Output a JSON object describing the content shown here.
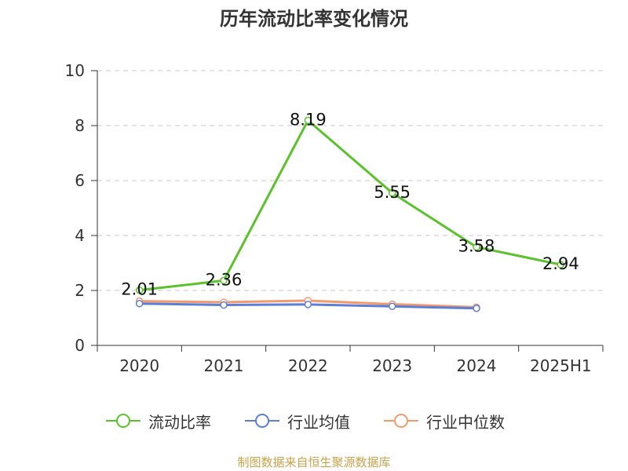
{
  "title": "历年流动比率变化情况",
  "source": "制图数据来自恒生聚源数据库",
  "chart_data": {
    "type": "line",
    "categories": [
      "2020",
      "2021",
      "2022",
      "2023",
      "2024",
      "2025H1"
    ],
    "ylim": [
      0,
      10
    ],
    "yticks": [
      "0",
      "2",
      "4",
      "6",
      "8",
      "10"
    ],
    "grid": true,
    "legend_position": "bottom",
    "series": [
      {
        "name": "流动比率",
        "color": "#5bc22b",
        "values": [
          2.01,
          2.36,
          8.19,
          5.55,
          3.58,
          2.94
        ],
        "labels": [
          "2.01",
          "2.36",
          "8.19",
          "5.55",
          "3.58",
          "2.94"
        ]
      },
      {
        "name": "行业均值",
        "color": "#5b7fd6",
        "values": [
          1.52,
          1.47,
          1.49,
          1.42,
          1.35,
          null
        ]
      },
      {
        "name": "行业中位数",
        "color": "#f29a6e",
        "values": [
          1.61,
          1.57,
          1.63,
          1.5,
          1.39,
          null
        ]
      }
    ]
  }
}
